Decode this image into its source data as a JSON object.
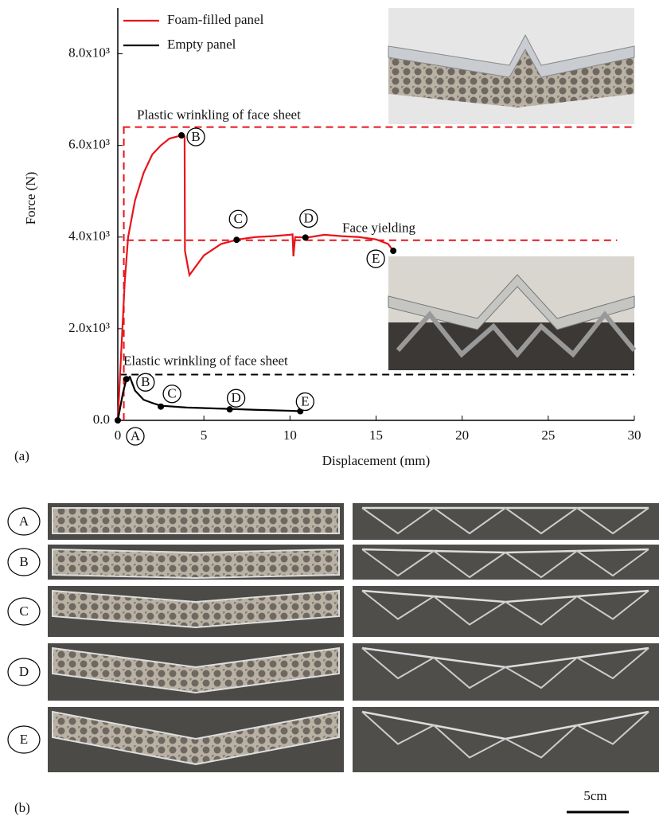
{
  "chart_data": {
    "type": "line",
    "xlabel": "Displacement (mm)",
    "ylabel": "Force (N)",
    "xlim": [
      0,
      30
    ],
    "ylim": [
      0,
      9000
    ],
    "xticks": [
      0,
      5,
      10,
      15,
      20,
      25,
      30
    ],
    "yticks": [
      {
        "value": 0,
        "label": "0.0"
      },
      {
        "value": 2000,
        "label": "2.0x10³"
      },
      {
        "value": 4000,
        "label": "4.0x10³"
      },
      {
        "value": 6000,
        "label": "6.0x10³"
      },
      {
        "value": 8000,
        "label": "8.0x10³"
      }
    ],
    "legend": "top-left",
    "series": [
      {
        "name": "Foam-filled panel",
        "color": "#e8141b",
        "x": [
          0,
          0.2,
          0.4,
          0.6,
          1,
          1.5,
          2,
          2.5,
          3,
          3.7,
          3.88,
          3.9,
          4.16,
          5,
          6,
          7,
          8,
          9,
          10,
          10.15,
          10.2,
          10.3,
          11,
          12,
          13,
          14,
          15,
          15.7,
          16
        ],
        "values": [
          0,
          1500,
          3000,
          4000,
          4800,
          5400,
          5800,
          6000,
          6150,
          6220,
          6200,
          3700,
          3170,
          3600,
          3850,
          3950,
          4000,
          4020,
          4050,
          4060,
          3580,
          4000,
          3990,
          4050,
          4020,
          4000,
          3950,
          3850,
          3700
        ],
        "markers": {
          "x": [
            3.7,
            6.9,
            10.9,
            16
          ],
          "y": [
            6220,
            3940,
            3990,
            3700
          ],
          "labels": [
            "B",
            "C",
            "D",
            "E"
          ]
        }
      },
      {
        "name": "Empty panel",
        "color": "#000000",
        "x": [
          0,
          0.3,
          0.5,
          0.7,
          1,
          1.5,
          2,
          2.5,
          4,
          6.5,
          8,
          10,
          10.6
        ],
        "values": [
          0,
          600,
          900,
          950,
          650,
          450,
          380,
          320,
          280,
          250,
          230,
          210,
          200
        ],
        "markers": {
          "x": [
            0,
            0.5,
            2.5,
            6.5,
            10.6
          ],
          "y": [
            0,
            900,
            300,
            240,
            200
          ],
          "labels": [
            "A",
            "B",
            "C",
            "D",
            "E"
          ]
        }
      }
    ],
    "ref_lines": [
      {
        "y": 6400,
        "x": [
          0.3,
          30
        ],
        "color": "#e8141b",
        "label": "Plastic wrinkling of face sheet"
      },
      {
        "y": 3930,
        "x": [
          0.5,
          29
        ],
        "color": "#e8141b",
        "label": "Face yielding"
      },
      {
        "y": 1000,
        "x": [
          0.1,
          30
        ],
        "color": "#000000",
        "label": "Elastic wrinkling of face sheet"
      }
    ],
    "ref_vline": {
      "x": 0.35,
      "y": [
        0,
        6400
      ],
      "color": "#e8141b"
    }
  },
  "panel_a": "(a)",
  "panel_b": "(b)",
  "photo_rows": [
    "A",
    "B",
    "C",
    "D",
    "E"
  ],
  "scale_bar": "5cm"
}
